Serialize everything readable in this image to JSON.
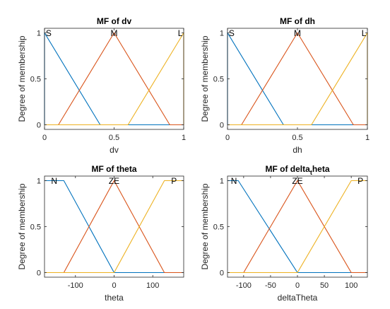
{
  "chart_data": [
    {
      "type": "line",
      "title": "MF of dv",
      "title_sub": "",
      "title_suffix": "",
      "xlabel": "dv",
      "ylabel": "Degree of membership",
      "xlim": [
        0,
        1
      ],
      "ylim": [
        -0.05,
        1.05
      ],
      "xticks": [
        0,
        0.5,
        1
      ],
      "xtick_labels": [
        "0",
        "0.5",
        "1"
      ],
      "yticks": [
        0,
        0.5,
        1
      ],
      "ytick_labels": [
        "0",
        "0.5",
        "1"
      ],
      "grid": false,
      "series": [
        {
          "name": "S",
          "color": "#0072BD",
          "x": [
            0,
            0,
            0.4,
            1
          ],
          "y": [
            0,
            1,
            0,
            0
          ]
        },
        {
          "name": "M",
          "color": "#D95319",
          "x": [
            0,
            0.1,
            0.5,
            0.9,
            1
          ],
          "y": [
            0,
            0,
            1,
            0,
            0
          ]
        },
        {
          "name": "L",
          "color": "#EDB120",
          "x": [
            0,
            0.6,
            1,
            1
          ],
          "y": [
            0,
            0,
            1,
            0
          ]
        }
      ],
      "labels": [
        {
          "text": "S",
          "x": 0.03
        },
        {
          "text": "M",
          "x": 0.5
        },
        {
          "text": "L",
          "x": 0.975
        }
      ]
    },
    {
      "type": "line",
      "title": "MF of dh",
      "title_sub": "",
      "title_suffix": "",
      "xlabel": "dh",
      "ylabel": "Degree of membership",
      "xlim": [
        0,
        1
      ],
      "ylim": [
        -0.05,
        1.05
      ],
      "xticks": [
        0,
        0.5,
        1
      ],
      "xtick_labels": [
        "0",
        "0.5",
        "1"
      ],
      "yticks": [
        0,
        0.5,
        1
      ],
      "ytick_labels": [
        "0",
        "0.5",
        "1"
      ],
      "grid": false,
      "series": [
        {
          "name": "S",
          "color": "#0072BD",
          "x": [
            0,
            0,
            0.4,
            1
          ],
          "y": [
            0,
            1,
            0,
            0
          ]
        },
        {
          "name": "M",
          "color": "#D95319",
          "x": [
            0,
            0.1,
            0.5,
            0.9,
            1
          ],
          "y": [
            0,
            0,
            1,
            0,
            0
          ]
        },
        {
          "name": "L",
          "color": "#EDB120",
          "x": [
            0,
            0.6,
            1,
            1
          ],
          "y": [
            0,
            0,
            1,
            0
          ]
        }
      ],
      "labels": [
        {
          "text": "S",
          "x": 0.03
        },
        {
          "text": "M",
          "x": 0.5
        },
        {
          "text": "L",
          "x": 0.975
        }
      ]
    },
    {
      "type": "line",
      "title": "MF of theta",
      "title_sub": "",
      "title_suffix": "",
      "xlabel": "theta",
      "ylabel": "Degree of membership",
      "xlim": [
        -180,
        180
      ],
      "ylim": [
        -0.05,
        1.05
      ],
      "xticks": [
        -100,
        0,
        100
      ],
      "xtick_labels": [
        "-100",
        "0",
        "100"
      ],
      "yticks": [
        0,
        0.5,
        1
      ],
      "ytick_labels": [
        "0",
        "0.5",
        "1"
      ],
      "grid": false,
      "series": [
        {
          "name": "N",
          "color": "#0072BD",
          "x": [
            -180,
            -130,
            0,
            180
          ],
          "y": [
            1,
            1,
            0,
            0
          ]
        },
        {
          "name": "ZE",
          "color": "#D95319",
          "x": [
            -180,
            -130,
            0,
            130,
            180
          ],
          "y": [
            0,
            0,
            1,
            0,
            0
          ]
        },
        {
          "name": "P",
          "color": "#EDB120",
          "x": [
            -180,
            0,
            130,
            180
          ],
          "y": [
            0,
            0,
            1,
            1
          ]
        }
      ],
      "labels": [
        {
          "text": "N",
          "x": -155
        },
        {
          "text": "ZE",
          "x": 0
        },
        {
          "text": "P",
          "x": 155
        }
      ]
    },
    {
      "type": "line",
      "title": "MF of delta",
      "title_sub": "t",
      "title_suffix": "heta",
      "xlabel": "deltaTheta",
      "ylabel": "Degree of membership",
      "xlim": [
        -130,
        130
      ],
      "ylim": [
        -0.05,
        1.05
      ],
      "xticks": [
        -100,
        -50,
        0,
        50,
        100
      ],
      "xtick_labels": [
        "-100",
        "-50",
        "0",
        "50",
        "100"
      ],
      "yticks": [
        0,
        0.5,
        1
      ],
      "ytick_labels": [
        "0",
        "0.5",
        "1"
      ],
      "grid": false,
      "series": [
        {
          "name": "N",
          "color": "#0072BD",
          "x": [
            -130,
            -110,
            0,
            130
          ],
          "y": [
            1,
            1,
            0,
            0
          ]
        },
        {
          "name": "ZE",
          "color": "#D95319",
          "x": [
            -130,
            -100,
            0,
            100,
            130
          ],
          "y": [
            0,
            0,
            1,
            0,
            0
          ]
        },
        {
          "name": "P",
          "color": "#EDB120",
          "x": [
            -130,
            0,
            100,
            130
          ],
          "y": [
            0,
            0,
            1,
            1
          ]
        }
      ],
      "labels": [
        {
          "text": "N",
          "x": -118
        },
        {
          "text": "ZE",
          "x": 0
        },
        {
          "text": "P",
          "x": 117
        }
      ]
    }
  ]
}
